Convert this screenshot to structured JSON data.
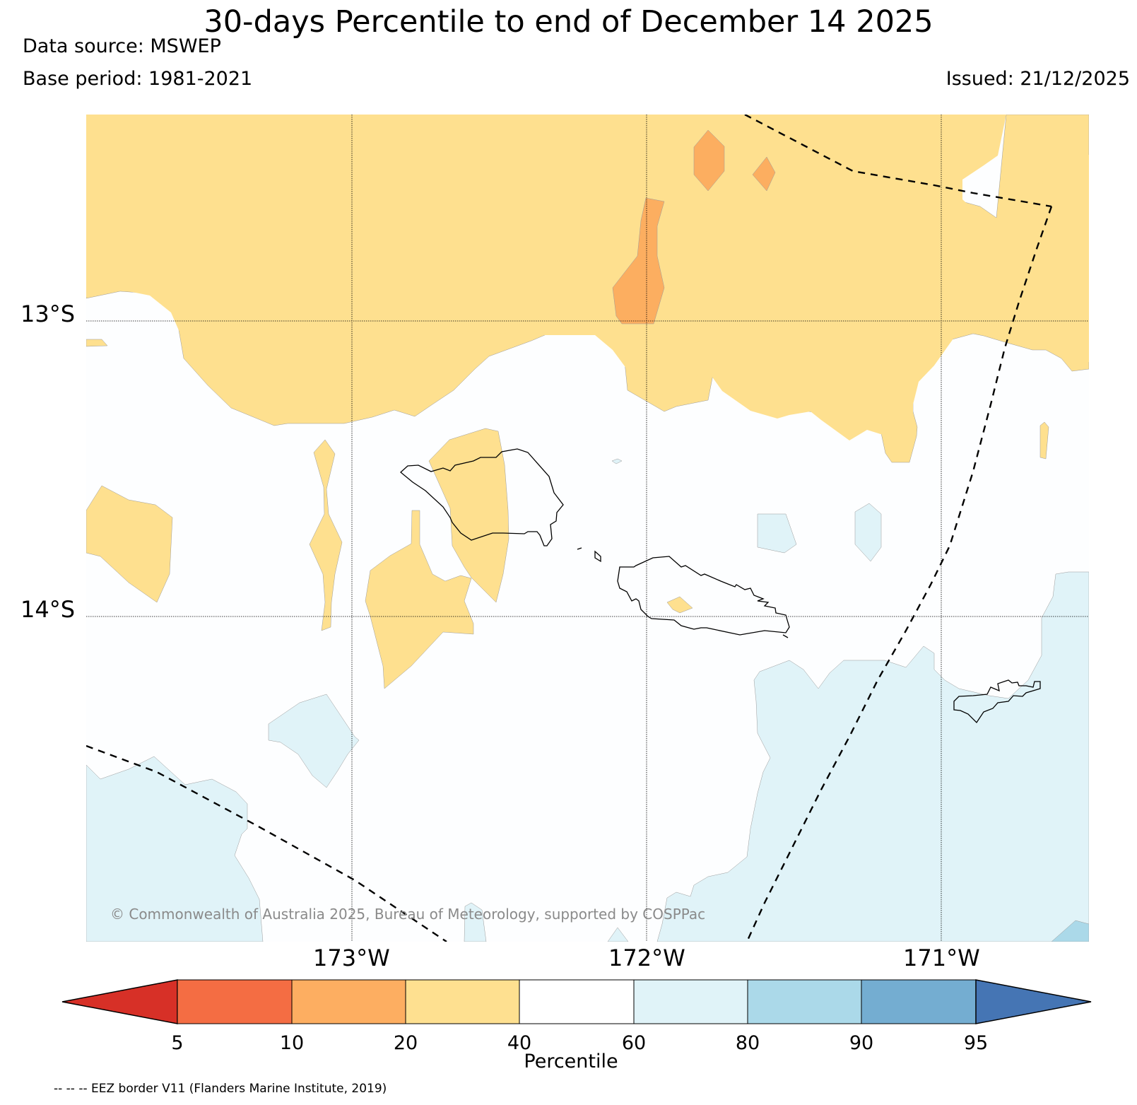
{
  "title": "30-days Percentile to end of December 14 2025",
  "data_source": "Data source: MSWEP",
  "base_period": "Base period: 1981-2021",
  "issued": "Issued: 21/12/2025",
  "map": {
    "lat_labels": [
      "13°S",
      "14°S"
    ],
    "lon_labels": [
      "173°W",
      "172°W",
      "171°W"
    ],
    "copyright": "© Commonwealth of Australia 2025, Bureau of Meteorology, supported by COSPPac",
    "colors": {
      "background": "#fdfeff",
      "p20_40": "#fee08f",
      "p10_20": "#fcae60",
      "p60_80": "#e0f3f8",
      "p80_90": "#abd9e9",
      "coast": "#000000",
      "eez": "#000000"
    }
  },
  "colorbar": {
    "label": "Percentile",
    "ticks": [
      "5",
      "10",
      "20",
      "40",
      "60",
      "80",
      "90",
      "95"
    ],
    "colors": {
      "below5": "#d73027",
      "c5_10": "#f46d43",
      "c10_20": "#fdae61",
      "c20_40": "#fee090",
      "c40_60": "#ffffff",
      "c60_80": "#e0f3f8",
      "c80_90": "#abd9e9",
      "c90_95": "#74add1",
      "above95": "#4575b4"
    }
  },
  "footnote": "-- -- -- EEZ border V11 (Flanders Marine Institute, 2019)"
}
